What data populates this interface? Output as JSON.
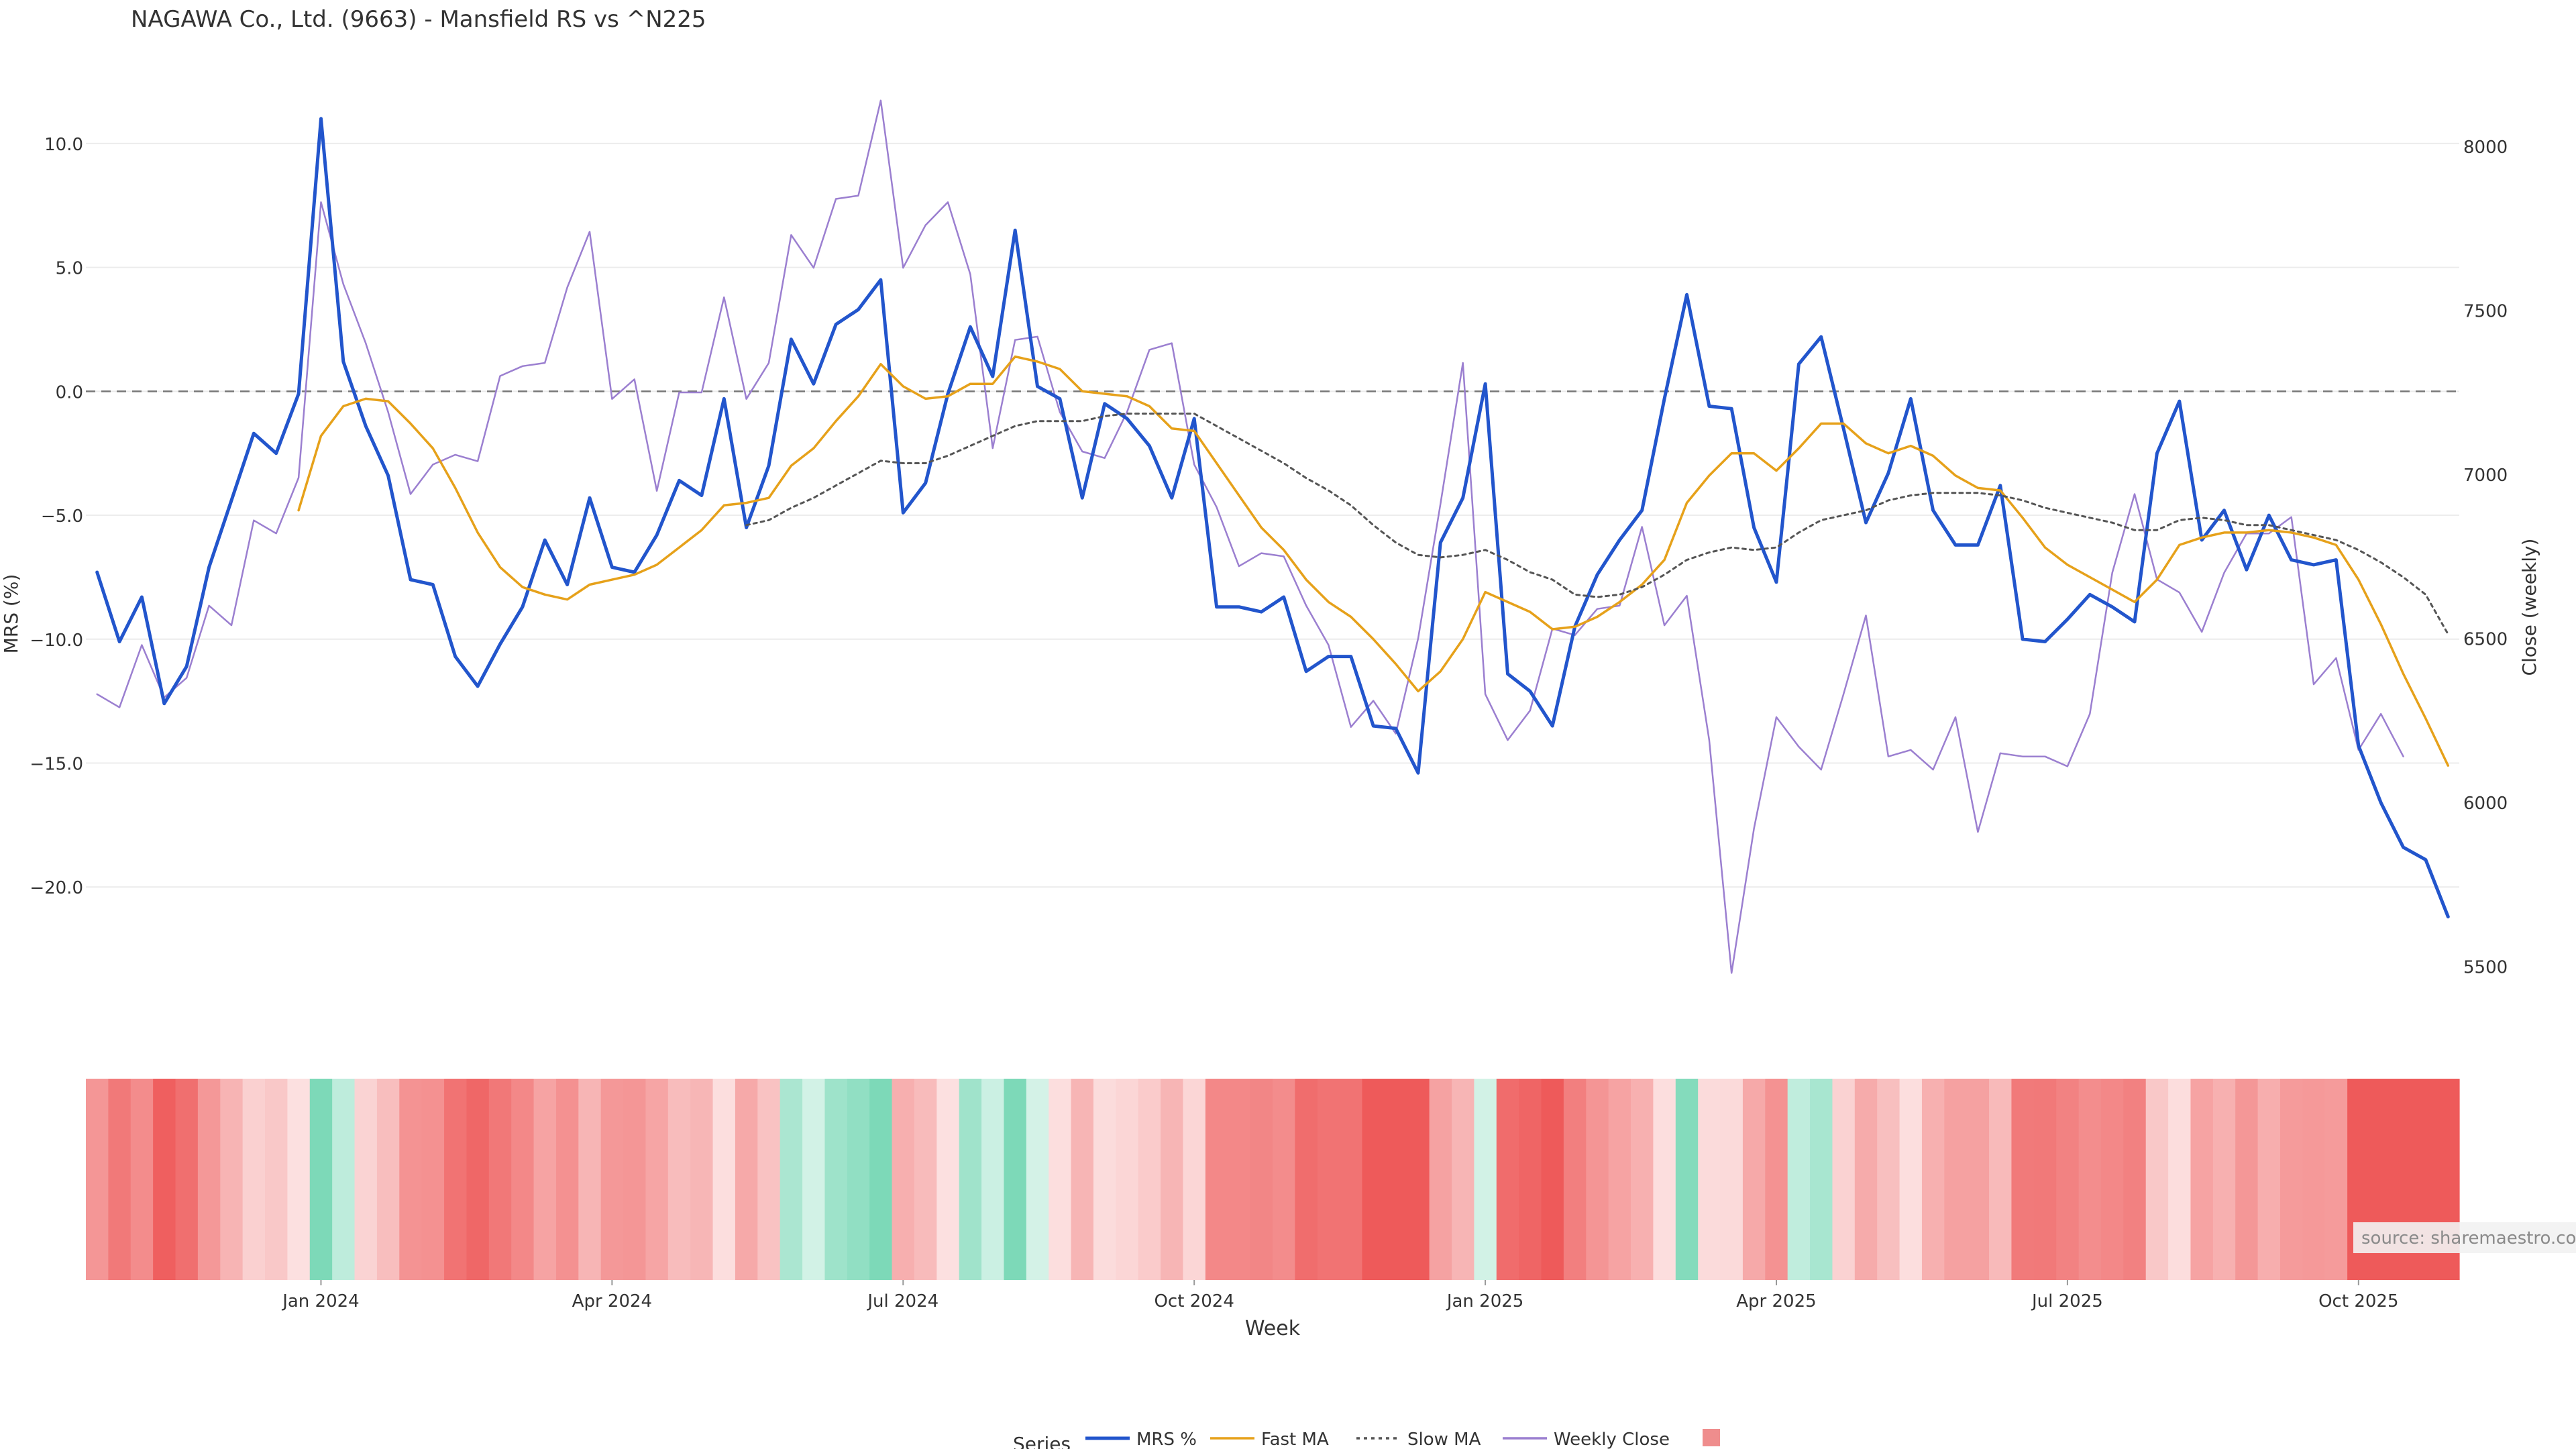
{
  "chart_data": {
    "type": "line",
    "title": "NAGAWA Co., Ltd. (9663) - Mansfield RS vs ^N225",
    "xlabel": "Week",
    "ylabel_left": "MRS (%)",
    "ylabel_right": "Close (weekly)",
    "ylim_left": [
      -24,
      12
    ],
    "ylim_right": [
      5440,
      8160
    ],
    "yticks_left": [
      10,
      5,
      0,
      -5,
      -10,
      -15,
      -20
    ],
    "yticks_left_labels": [
      "10.0",
      "5.0",
      "0.0",
      "−5.0",
      "−10.0",
      "−15.0",
      "−20.0"
    ],
    "yticks_right": [
      8000,
      7500,
      7000,
      6500,
      6000,
      5500
    ],
    "yticks_right_labels": [
      "8000",
      "7500",
      "7000",
      "6500",
      "6000",
      "5500"
    ],
    "x_ticks": [
      {
        "label": "Jan 2024",
        "week_index": 10
      },
      {
        "label": "Apr 2024",
        "week_index": 23
      },
      {
        "label": "Jul 2024",
        "week_index": 36
      },
      {
        "label": "Oct 2024",
        "week_index": 49
      },
      {
        "label": "Jan 2025",
        "week_index": 62
      },
      {
        "label": "Apr 2025",
        "week_index": 75
      },
      {
        "label": "Jul 2025",
        "week_index": 88
      },
      {
        "label": "Oct 2025",
        "week_index": 101
      }
    ],
    "x_range": [
      -0.5,
      105.5
    ],
    "zero_line": 0,
    "grid": true,
    "legend_position": "bottom-center",
    "legend_title": "Series",
    "series": [
      {
        "name": "MRS %",
        "color": "#2255cc",
        "axis": "left",
        "style": "solid",
        "values": [
          -7.3,
          -10.1,
          -8.3,
          -12.6,
          -11.1,
          -7.1,
          -4.4,
          -1.7,
          -2.5,
          -0.1,
          11.0,
          1.2,
          -1.4,
          -3.4,
          -7.6,
          -7.8,
          -10.7,
          -11.9,
          -10.2,
          -8.7,
          -6.0,
          -7.8,
          -4.3,
          -7.1,
          -7.3,
          -5.8,
          -3.6,
          -4.2,
          -0.3,
          -5.5,
          -3.0,
          2.1,
          0.3,
          2.7,
          3.3,
          4.5,
          -4.9,
          -3.7,
          -0.1,
          2.6,
          0.6,
          6.5,
          0.2,
          -0.3,
          -4.3,
          -0.5,
          -1.1,
          -2.2,
          -4.3,
          -1.1,
          -8.7,
          -8.7,
          -8.9,
          -8.3,
          -11.3,
          -10.7,
          -10.7,
          -13.5,
          -13.6,
          -15.4,
          -6.1,
          -4.3,
          0.3,
          -11.4,
          -12.1,
          -13.5,
          -9.5,
          -7.4,
          -6.0,
          -4.8,
          -0.3,
          3.9,
          -0.6,
          -0.7,
          -5.5,
          -7.7,
          1.1,
          2.2,
          -1.5,
          -5.3,
          -3.3,
          -0.3,
          -4.8,
          -6.2,
          -6.2,
          -3.8,
          -10.0,
          -10.1,
          -9.2,
          -8.2,
          -8.7,
          -9.3,
          -2.5,
          -0.4,
          -6.0,
          -4.8,
          -7.2,
          -5.0,
          -6.8,
          -7.0,
          -6.8,
          -14.3,
          -16.6,
          -18.4,
          -18.9,
          -21.2
        ]
      },
      {
        "name": "Fast MA",
        "color": "#e6a11a",
        "axis": "left",
        "style": "solid",
        "values": [
          null,
          null,
          null,
          null,
          null,
          null,
          null,
          null,
          null,
          -4.8,
          -1.8,
          -0.6,
          -0.3,
          -0.4,
          -1.3,
          -2.3,
          -3.9,
          -5.7,
          -7.1,
          -7.9,
          -8.2,
          -8.4,
          -7.8,
          -7.6,
          -7.4,
          -7.0,
          -6.3,
          -5.6,
          -4.6,
          -4.5,
          -4.3,
          -3.0,
          -2.3,
          -1.2,
          -0.2,
          1.1,
          0.2,
          -0.3,
          -0.2,
          0.3,
          0.3,
          1.4,
          1.2,
          0.9,
          0.0,
          -0.1,
          -0.2,
          -0.6,
          -1.5,
          -1.6,
          -2.9,
          -4.2,
          -5.5,
          -6.4,
          -7.6,
          -8.5,
          -9.1,
          -10.0,
          -11.0,
          -12.1,
          -11.3,
          -10.0,
          -8.1,
          -8.5,
          -8.9,
          -9.6,
          -9.5,
          -9.1,
          -8.5,
          -7.8,
          -6.8,
          -4.5,
          -3.4,
          -2.5,
          -2.5,
          -3.2,
          -2.3,
          -1.3,
          -1.3,
          -2.1,
          -2.5,
          -2.2,
          -2.6,
          -3.4,
          -3.9,
          -4.0,
          -5.1,
          -6.3,
          -7.0,
          -7.5,
          -8.0,
          -8.5,
          -7.6,
          -6.2,
          -5.9,
          -5.7,
          -5.7,
          -5.6,
          -5.7,
          -5.9,
          -6.2,
          -7.6,
          -9.4,
          -11.4,
          -13.2,
          -15.1
        ]
      },
      {
        "name": "Slow MA",
        "color": "#555555",
        "axis": "left",
        "style": "dotted",
        "values": [
          null,
          null,
          null,
          null,
          null,
          null,
          null,
          null,
          null,
          null,
          null,
          null,
          null,
          null,
          null,
          null,
          null,
          null,
          null,
          null,
          null,
          null,
          null,
          null,
          null,
          null,
          null,
          null,
          null,
          -5.4,
          -5.2,
          -4.7,
          -4.3,
          -3.8,
          -3.3,
          -2.8,
          -2.9,
          -2.9,
          -2.6,
          -2.2,
          -1.8,
          -1.4,
          -1.2,
          -1.2,
          -1.2,
          -1.0,
          -0.9,
          -0.9,
          -0.9,
          -0.9,
          -1.4,
          -1.9,
          -2.4,
          -2.9,
          -3.5,
          -4.0,
          -4.6,
          -5.4,
          -6.1,
          -6.6,
          -6.7,
          -6.6,
          -6.4,
          -6.8,
          -7.3,
          -7.6,
          -8.2,
          -8.3,
          -8.2,
          -7.9,
          -7.4,
          -6.8,
          -6.5,
          -6.3,
          -6.4,
          -6.3,
          -5.7,
          -5.2,
          -5.0,
          -4.8,
          -4.4,
          -4.2,
          -4.1,
          -4.1,
          -4.1,
          -4.2,
          -4.4,
          -4.7,
          -4.9,
          -5.1,
          -5.3,
          -5.6,
          -5.6,
          -5.2,
          -5.1,
          -5.2,
          -5.4,
          -5.4,
          -5.6,
          -5.8,
          -6.0,
          -6.4,
          -6.9,
          -7.5,
          -8.2,
          -9.8
        ]
      },
      {
        "name": "Weekly Close",
        "color": "#9b7fd0",
        "axis": "right",
        "style": "solid",
        "values": [
          6330,
          6290,
          6480,
          6320,
          6380,
          6600,
          6540,
          6860,
          6820,
          6990,
          7830,
          7580,
          7400,
          7190,
          6940,
          7030,
          7060,
          7040,
          7300,
          7330,
          7340,
          7570,
          7740,
          7230,
          7290,
          6950,
          7250,
          7250,
          7540,
          7230,
          7340,
          7730,
          7630,
          7840,
          7850,
          8140,
          7630,
          7760,
          7830,
          7610,
          7080,
          7410,
          7420,
          7190,
          7070,
          7050,
          7190,
          7380,
          7400,
          7030,
          6900,
          6720,
          6760,
          6750,
          6600,
          6480,
          6230,
          6310,
          6210,
          6500,
          6910,
          7340,
          6330,
          6190,
          6280,
          6530,
          6510,
          6590,
          6600,
          6840,
          6540,
          6630,
          6190,
          5480,
          5920,
          6260,
          6170,
          6100,
          6330,
          6570,
          6140,
          6160,
          6100,
          6260,
          5910,
          6150,
          6140,
          6140,
          6110,
          6270,
          6700,
          6940,
          6680,
          6640,
          6520,
          6700,
          6820,
          6820,
          6870,
          6360,
          6440,
          6160,
          6270,
          6140
        ]
      },
      {
        "name": "",
        "color": "#ef8d8d",
        "axis": "none",
        "style": "swatch",
        "values": []
      }
    ],
    "regime_band": {
      "values": [
        -7.3,
        -10.1,
        -8.3,
        -12.6,
        -11.1,
        -7.1,
        -4.4,
        -1.7,
        -2.5,
        -0.1,
        11.0,
        1.2,
        -1.4,
        -3.4,
        -7.6,
        -7.8,
        -10.7,
        -11.9,
        -10.2,
        -8.7,
        -6.0,
        -7.8,
        -4.3,
        -7.1,
        -7.3,
        -5.8,
        -3.6,
        -4.2,
        -0.3,
        -5.5,
        -3.0,
        2.1,
        0.3,
        2.7,
        3.3,
        4.5,
        -4.9,
        -3.7,
        -0.1,
        2.6,
        0.6,
        6.5,
        0.2,
        -0.3,
        -4.3,
        -0.5,
        -1.1,
        -2.2,
        -4.3,
        -1.1,
        -8.7,
        -8.7,
        -8.9,
        -8.3,
        -11.3,
        -10.7,
        -10.7,
        -13.5,
        -13.6,
        -15.4,
        -6.1,
        -4.3,
        0.3,
        -11.4,
        -12.1,
        -13.5,
        -9.5,
        -7.4,
        -6.0,
        -4.8,
        -0.3,
        3.9,
        -0.6,
        -0.7,
        -5.5,
        -7.7,
        1.1,
        2.2,
        -1.5,
        -5.3,
        -3.3,
        -0.3,
        -4.8,
        -6.2,
        -6.2,
        -3.8,
        -10.0,
        -10.1,
        -9.2,
        -8.2,
        -8.7,
        -9.3,
        -2.5,
        -0.4,
        -6.0,
        -4.8,
        -7.2,
        -5.0,
        -6.8,
        -7.0,
        -6.8,
        -14.3,
        -16.6,
        -18.4,
        -18.9,
        -21.2
      ],
      "positive_color": "#7dd9b8",
      "negative_color": "#ee5a5a"
    },
    "annotation": "source: sharemaestro.com"
  }
}
